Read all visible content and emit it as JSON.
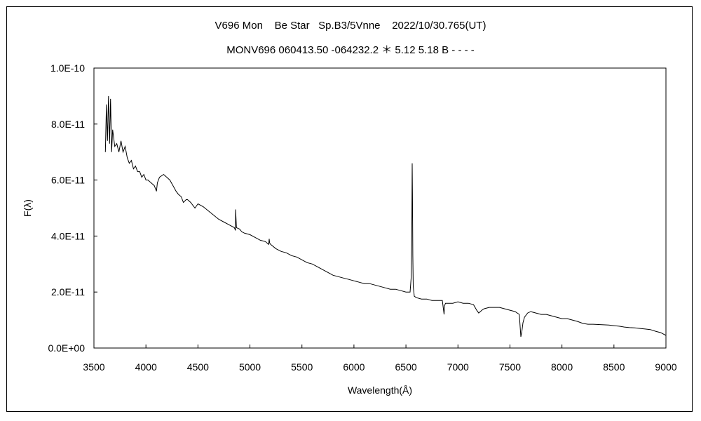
{
  "chart_data": {
    "type": "line",
    "title": "V696 Mon    Be Star   Sp.B3/5Vnne    2022/10/30.765(UT)",
    "subtitle": "MONV696 060413.50 -064232.2 ＊ 5.12 5.18 B - - - -",
    "xlabel": "Wavelength(Å)",
    "ylabel": "F(λ)",
    "xlim": [
      3500,
      9000
    ],
    "ylim": [
      0,
      1e-10
    ],
    "x_ticks": [
      3500,
      4000,
      4500,
      5000,
      5500,
      6000,
      6500,
      7000,
      7500,
      8000,
      8500,
      9000
    ],
    "x_tick_labels": [
      "3500",
      "4000",
      "4500",
      "5000",
      "5500",
      "6000",
      "6500",
      "7000",
      "7500",
      "8000",
      "8500",
      "9000"
    ],
    "y_ticks": [
      0,
      2e-11,
      4e-11,
      6e-11,
      8e-11,
      1e-10
    ],
    "y_tick_labels": [
      "0.0E+00",
      "2.0E-11",
      "4.0E-11",
      "6.0E-11",
      "8.0E-11",
      "1.0E-10"
    ],
    "grid": false,
    "line_color": "#000000",
    "series": [
      {
        "x": [
          3610,
          3620,
          3630,
          3640,
          3650,
          3660,
          3670,
          3680,
          3690,
          3700,
          3720,
          3740,
          3760,
          3780,
          3800,
          3820,
          3840,
          3860,
          3880,
          3900,
          3920,
          3940,
          3960,
          3980,
          4000,
          4020,
          4050,
          4080,
          4101,
          4110,
          4130,
          4150,
          4170,
          4200,
          4230,
          4260,
          4290,
          4310,
          4340,
          4360,
          4387,
          4400,
          4430,
          4471,
          4500,
          4550,
          4600,
          4650,
          4700,
          4750,
          4800,
          4850,
          4861,
          4862,
          4870,
          4900,
          4922,
          4950,
          5000,
          5050,
          5100,
          5150,
          5180,
          5185,
          5190,
          5200,
          5250,
          5300,
          5350,
          5400,
          5450,
          5500,
          5550,
          5600,
          5650,
          5700,
          5750,
          5800,
          5850,
          5900,
          5950,
          6000,
          6050,
          6100,
          6150,
          6200,
          6250,
          6300,
          6350,
          6400,
          6450,
          6500,
          6540,
          6550,
          6556,
          6560,
          6563,
          6566,
          6570,
          6580,
          6600,
          6650,
          6700,
          6750,
          6800,
          6850,
          6867,
          6870,
          6880,
          6900,
          6950,
          7000,
          7050,
          7100,
          7150,
          7180,
          7200,
          7230,
          7250,
          7300,
          7350,
          7400,
          7450,
          7500,
          7550,
          7590,
          7605,
          7615,
          7625,
          7640,
          7670,
          7700,
          7750,
          7800,
          7850,
          7900,
          7950,
          8000,
          8050,
          8100,
          8150,
          8200,
          8250,
          8300,
          8350,
          8400,
          8450,
          8500,
          8550,
          8600,
          8650,
          8700,
          8750,
          8800,
          8850,
          8900,
          8950,
          9000
        ],
        "y": [
          7e-11,
          8.7e-11,
          7.4e-11,
          9e-11,
          7.3e-11,
          8.9e-11,
          7e-11,
          7.8e-11,
          7.5e-11,
          7.2e-11,
          7.3e-11,
          7e-11,
          7.4e-11,
          7e-11,
          7.2e-11,
          6.8e-11,
          6.6e-11,
          6.7e-11,
          6.4e-11,
          6.5e-11,
          6.3e-11,
          6.3e-11,
          6.1e-11,
          6.2e-11,
          6e-11,
          6e-11,
          5.9e-11,
          5.8e-11,
          5.6e-11,
          5.9e-11,
          6.1e-11,
          6.15e-11,
          6.2e-11,
          6.1e-11,
          6e-11,
          5.8e-11,
          5.6e-11,
          5.5e-11,
          5.4e-11,
          5.2e-11,
          5.3e-11,
          5.3e-11,
          5.2e-11,
          5e-11,
          5.15e-11,
          5.05e-11,
          4.9e-11,
          4.75e-11,
          4.6e-11,
          4.5e-11,
          4.4e-11,
          4.3e-11,
          4.2e-11,
          4.95e-11,
          4.3e-11,
          4.25e-11,
          4.15e-11,
          4.1e-11,
          4.05e-11,
          3.95e-11,
          3.85e-11,
          3.8e-11,
          3.7e-11,
          3.9e-11,
          3.75e-11,
          3.7e-11,
          3.55e-11,
          3.45e-11,
          3.4e-11,
          3.3e-11,
          3.25e-11,
          3.15e-11,
          3.05e-11,
          3e-11,
          2.9e-11,
          2.8e-11,
          2.7e-11,
          2.6e-11,
          2.55e-11,
          2.5e-11,
          2.45e-11,
          2.4e-11,
          2.35e-11,
          2.3e-11,
          2.3e-11,
          2.25e-11,
          2.2e-11,
          2.15e-11,
          2.1e-11,
          2.1e-11,
          2.05e-11,
          2e-11,
          2e-11,
          2.5e-11,
          4e-11,
          6.6e-11,
          5.5e-11,
          3.3e-11,
          2.2e-11,
          1.85e-11,
          1.8e-11,
          1.75e-11,
          1.75e-11,
          1.7e-11,
          1.7e-11,
          1.7e-11,
          1.2e-11,
          1.5e-11,
          1.6e-11,
          1.6e-11,
          1.6e-11,
          1.65e-11,
          1.6e-11,
          1.6e-11,
          1.55e-11,
          1.35e-11,
          1.25e-11,
          1.35e-11,
          1.4e-11,
          1.45e-11,
          1.45e-11,
          1.45e-11,
          1.4e-11,
          1.35e-11,
          1.3e-11,
          1.2e-11,
          4e-12,
          6e-12,
          9e-12,
          1.1e-11,
          1.25e-11,
          1.3e-11,
          1.25e-11,
          1.2e-11,
          1.2e-11,
          1.15e-11,
          1.1e-11,
          1.05e-11,
          1.05e-11,
          1e-11,
          9.5e-12,
          8.8e-12,
          8.5e-12,
          8.5e-12,
          8.4e-12,
          8.3e-12,
          8.2e-12,
          8e-12,
          7.8e-12,
          7.5e-12,
          7.3e-12,
          7.2e-12,
          7e-12,
          6.8e-12,
          6.6e-12,
          6e-12,
          5.5e-12,
          4.5e-12
        ]
      }
    ]
  }
}
